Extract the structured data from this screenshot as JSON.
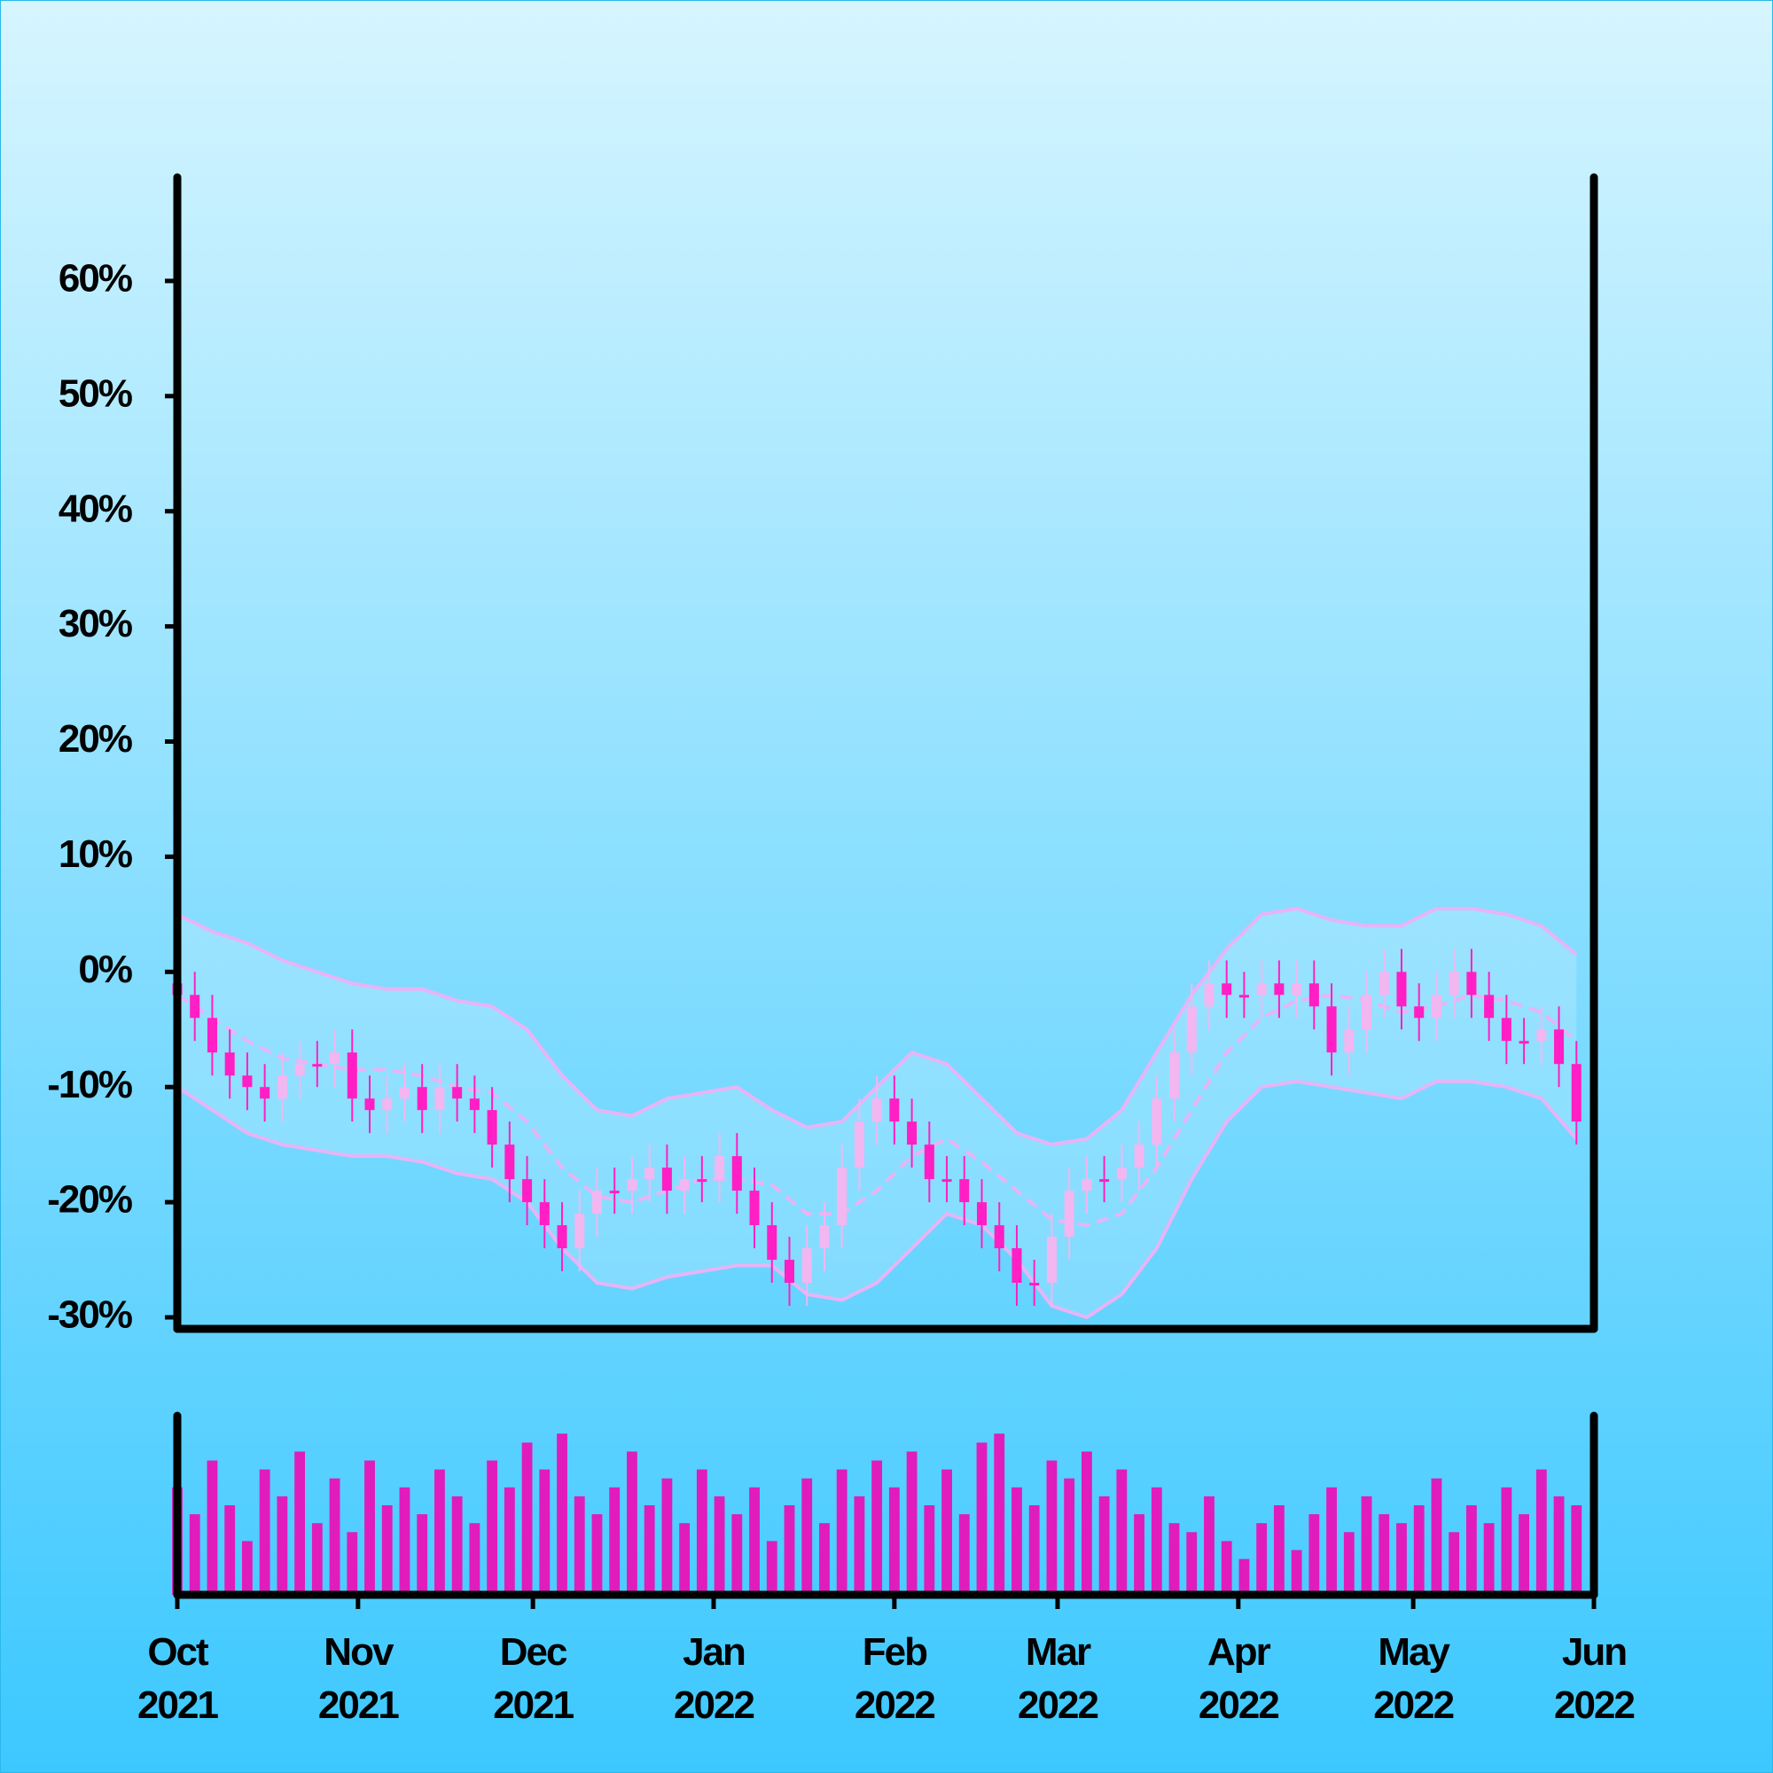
{
  "chart_data": {
    "type": "candlestick",
    "up_color": "#f2b6f0",
    "down_color": "#ff1fc4",
    "band_color": "#e8b4f6",
    "volume_color": "#e01cbc",
    "xlim": [
      0,
      243
    ],
    "xticks": [
      {
        "value": 0,
        "label": "Oct 2021"
      },
      {
        "value": 31,
        "label": "Nov 2021"
      },
      {
        "value": 61,
        "label": "Dec 2021"
      },
      {
        "value": 92,
        "label": "Jan 2022"
      },
      {
        "value": 123,
        "label": "Feb 2022"
      },
      {
        "value": 151,
        "label": "Mar 2022"
      },
      {
        "value": 182,
        "label": "Apr 2022"
      },
      {
        "value": 212,
        "label": "May 2022"
      },
      {
        "value": 243,
        "label": "Jun 2022"
      }
    ],
    "ylim": [
      -31,
      69
    ],
    "yticks": [
      {
        "value": -30,
        "label": "-30%"
      },
      {
        "value": -20,
        "label": "-20%"
      },
      {
        "value": -10,
        "label": "-10%"
      },
      {
        "value": 0,
        "label": "0%"
      },
      {
        "value": 10,
        "label": "10%"
      },
      {
        "value": 20,
        "label": "20%"
      },
      {
        "value": 30,
        "label": "30%"
      },
      {
        "value": 40,
        "label": "40%"
      },
      {
        "value": 50,
        "label": "50%"
      },
      {
        "value": 60,
        "label": "60%"
      }
    ],
    "x": [
      0,
      3,
      6,
      9,
      12,
      15,
      18,
      21,
      24,
      27,
      30,
      33,
      36,
      39,
      42,
      45,
      48,
      51,
      54,
      57,
      60,
      63,
      66,
      69,
      72,
      75,
      78,
      81,
      84,
      87,
      90,
      93,
      96,
      99,
      102,
      105,
      108,
      111,
      114,
      117,
      120,
      123,
      126,
      129,
      132,
      135,
      138,
      141,
      144,
      147,
      150,
      153,
      156,
      159,
      162,
      165,
      168,
      171,
      174,
      177,
      180,
      183,
      186,
      189,
      192,
      195,
      198,
      201,
      204,
      207,
      210,
      213,
      216,
      219,
      222,
      225,
      228,
      231,
      234,
      237,
      240
    ],
    "open": [
      -1,
      -2,
      -4,
      -7,
      -9,
      -10,
      -11,
      -9,
      -8,
      -8,
      -7,
      -11,
      -12,
      -11,
      -10,
      -12,
      -10,
      -11,
      -12,
      -15,
      -18,
      -20,
      -22,
      -24,
      -21,
      -19,
      -19,
      -18,
      -17,
      -19,
      -18,
      -18,
      -16,
      -19,
      -22,
      -25,
      -27,
      -24,
      -22,
      -17,
      -13,
      -11,
      -13,
      -15,
      -18,
      -18,
      -20,
      -22,
      -24,
      -27,
      -27,
      -23,
      -19,
      -18,
      -18,
      -17,
      -15,
      -11,
      -7,
      -3,
      -1,
      -2,
      -2,
      -1,
      -2,
      -1,
      -3,
      -7,
      -5,
      -2,
      0,
      -3,
      -4,
      -2,
      0,
      -2,
      -4,
      -6,
      -6,
      -5,
      -8
    ],
    "high": [
      1,
      0,
      -2,
      -5,
      -7,
      -8,
      -7,
      -6,
      -6,
      -5,
      -5,
      -9,
      -9,
      -8,
      -8,
      -8,
      -8,
      -9,
      -10,
      -13,
      -16,
      -18,
      -20,
      -19,
      -17,
      -17,
      -16,
      -15,
      -15,
      -16,
      -16,
      -14,
      -14,
      -17,
      -20,
      -23,
      -22,
      -20,
      -15,
      -11,
      -9,
      -9,
      -11,
      -13,
      -16,
      -16,
      -18,
      -20,
      -22,
      -25,
      -21,
      -17,
      -16,
      -16,
      -15,
      -13,
      -9,
      -5,
      -1,
      1,
      1,
      0,
      1,
      1,
      1,
      1,
      -1,
      -3,
      0,
      2,
      2,
      -1,
      0,
      2,
      2,
      0,
      -2,
      -4,
      -3,
      -3,
      -6
    ],
    "low": [
      -4,
      -6,
      -9,
      -11,
      -12,
      -13,
      -13,
      -11,
      -10,
      -10,
      -13,
      -14,
      -14,
      -13,
      -14,
      -14,
      -13,
      -14,
      -17,
      -20,
      -22,
      -24,
      -26,
      -26,
      -23,
      -21,
      -21,
      -20,
      -21,
      -21,
      -20,
      -20,
      -21,
      -24,
      -27,
      -29,
      -29,
      -26,
      -24,
      -19,
      -15,
      -15,
      -17,
      -20,
      -20,
      -22,
      -24,
      -26,
      -29,
      -29,
      -29,
      -25,
      -21,
      -20,
      -20,
      -19,
      -17,
      -13,
      -9,
      -5,
      -4,
      -4,
      -4,
      -4,
      -4,
      -5,
      -9,
      -9,
      -7,
      -4,
      -5,
      -6,
      -6,
      -4,
      -4,
      -6,
      -8,
      -8,
      -8,
      -10,
      -15
    ],
    "close": [
      -2,
      -4,
      -7,
      -9,
      -10,
      -11,
      -9,
      -8,
      -8,
      -7,
      -11,
      -12,
      -11,
      -10,
      -12,
      -10,
      -11,
      -12,
      -15,
      -18,
      -20,
      -22,
      -24,
      -21,
      -19,
      -19,
      -18,
      -17,
      -19,
      -18,
      -18,
      -16,
      -19,
      -22,
      -25,
      -27,
      -24,
      -22,
      -17,
      -13,
      -11,
      -13,
      -15,
      -18,
      -18,
      -20,
      -22,
      -24,
      -27,
      -27,
      -23,
      -19,
      -18,
      -18,
      -17,
      -15,
      -11,
      -7,
      -3,
      -1,
      -2,
      -2,
      -1,
      -2,
      -1,
      -3,
      -7,
      -5,
      -2,
      0,
      -3,
      -4,
      -2,
      0,
      -2,
      -4,
      -6,
      -6,
      -5,
      -8,
      -13
    ],
    "volume_ylim": [
      0,
      100
    ],
    "volume": [
      60,
      45,
      75,
      50,
      30,
      70,
      55,
      80,
      40,
      65,
      35,
      75,
      50,
      60,
      45,
      70,
      55,
      40,
      75,
      60,
      85,
      70,
      90,
      55,
      45,
      60,
      80,
      50,
      65,
      40,
      70,
      55,
      45,
      60,
      30,
      50,
      65,
      40,
      70,
      55,
      75,
      60,
      80,
      50,
      70,
      45,
      85,
      90,
      60,
      50,
      75,
      65,
      80,
      55,
      70,
      45,
      60,
      40,
      35,
      55,
      30,
      20,
      40,
      50,
      25,
      45,
      60,
      35,
      55,
      45,
      40,
      50,
      65,
      35,
      50,
      40,
      60,
      45,
      70,
      55,
      50
    ],
    "bands": {
      "x": [
        0,
        6,
        12,
        18,
        24,
        30,
        36,
        42,
        48,
        54,
        60,
        66,
        72,
        78,
        84,
        90,
        96,
        102,
        108,
        114,
        120,
        126,
        132,
        138,
        144,
        150,
        156,
        162,
        168,
        174,
        180,
        186,
        192,
        198,
        204,
        210,
        216,
        222,
        228,
        234,
        240
      ],
      "upper": [
        5,
        3.5,
        2.5,
        1,
        0,
        -1,
        -1.5,
        -1.5,
        -2.5,
        -3,
        -5,
        -9,
        -12,
        -12.5,
        -11,
        -10.5,
        -10,
        -12,
        -13.5,
        -13,
        -10,
        -7,
        -8,
        -11,
        -14,
        -15,
        -14.5,
        -12,
        -7,
        -2,
        2,
        5,
        5.5,
        4.5,
        4,
        4,
        5.5,
        5.5,
        5,
        4,
        1.5
      ],
      "middle": [
        -2,
        -4,
        -6,
        -7.5,
        -8,
        -8.5,
        -8.5,
        -9,
        -10,
        -10.5,
        -13,
        -17,
        -19.5,
        -20,
        -19,
        -18,
        -18,
        -18.5,
        -21,
        -21,
        -19,
        -16,
        -14.5,
        -16.5,
        -19,
        -21.5,
        -22,
        -21,
        -17,
        -12,
        -7,
        -4,
        -2.5,
        -2,
        -2.5,
        -3.5,
        -3,
        -2,
        -2.5,
        -3.5,
        -6
      ],
      "lower": [
        -10,
        -12,
        -14,
        -15,
        -15.5,
        -16,
        -16,
        -16.5,
        -17.5,
        -18,
        -20,
        -24,
        -27,
        -27.5,
        -26.5,
        -26,
        -25.5,
        -25.5,
        -28,
        -28.5,
        -27,
        -24,
        -21,
        -22,
        -25,
        -29,
        -30,
        -28,
        -24,
        -18,
        -13,
        -10,
        -9.5,
        -10,
        -10.5,
        -11,
        -9.5,
        -9.5,
        -10,
        -11,
        -14.5
      ]
    }
  }
}
